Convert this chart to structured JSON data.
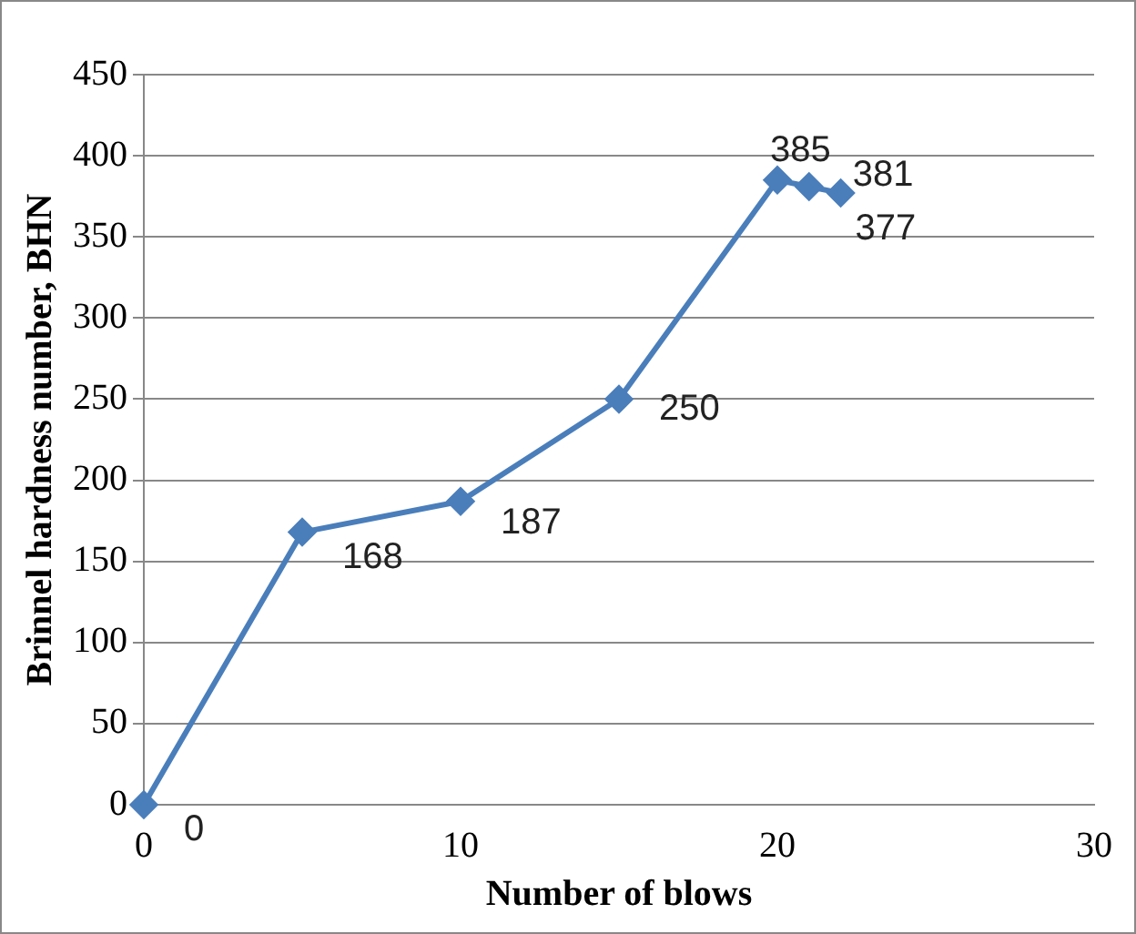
{
  "chart_data": {
    "type": "line",
    "xlabel": "Number of blows",
    "ylabel": "Brinnel hardness number, BHN",
    "x": [
      0,
      5,
      10,
      15,
      20,
      21,
      22
    ],
    "series": [
      {
        "color": "#4a7ebb",
        "values": [
          0,
          168,
          187,
          250,
          385,
          381,
          377
        ]
      }
    ],
    "xlim": [
      0,
      30
    ],
    "xticks": [
      0,
      10,
      20,
      30
    ],
    "ylim": [
      0,
      450
    ],
    "yticks": [
      0,
      50,
      100,
      150,
      200,
      250,
      300,
      350,
      400,
      450
    ],
    "grid": "y",
    "legend": false,
    "marker": "diamond",
    "line_style": "solid",
    "data_labels": true
  }
}
